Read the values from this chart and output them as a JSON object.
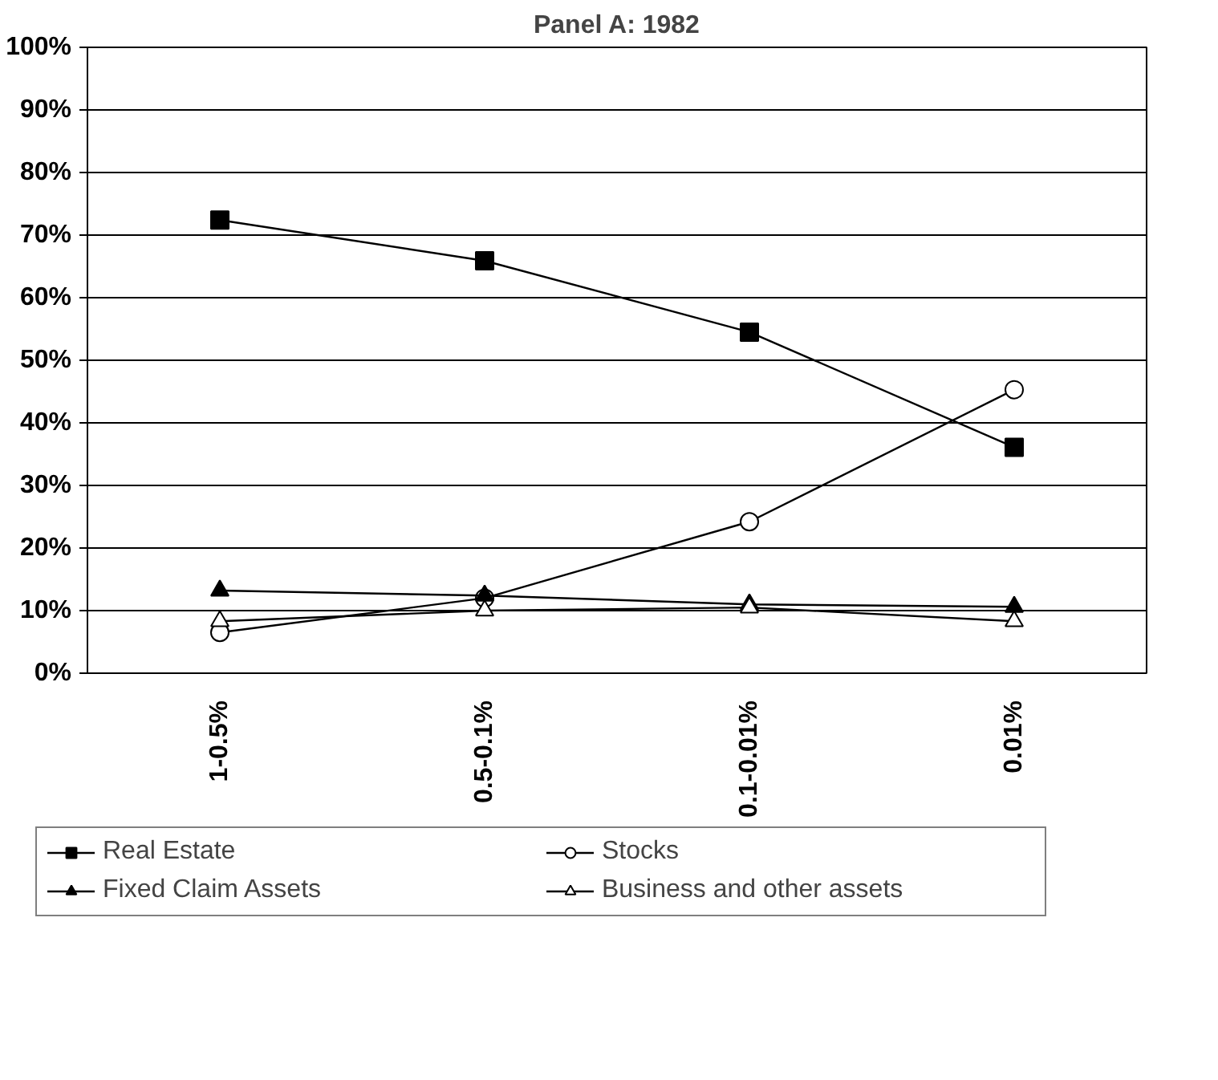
{
  "chart_data": {
    "type": "line",
    "title": "Panel A: 1982",
    "categories": [
      "1-0.5%",
      "0.5-0.1%",
      "0.1-0.01%",
      "0.01%"
    ],
    "series": [
      {
        "name": "Real Estate",
        "color": "#000000",
        "marker": "square",
        "values": [
          72.4,
          65.9,
          54.5,
          36.1
        ]
      },
      {
        "name": "Stocks",
        "color": "#000000",
        "marker": "circle_open",
        "values": [
          6.5,
          12,
          24.2,
          45.3
        ]
      },
      {
        "name": "Fixed Claim Assets",
        "color": "#000000",
        "marker": "triangle",
        "values": [
          13.2,
          12.4,
          11,
          10.6
        ]
      },
      {
        "name": "Business and other assets",
        "color": "#000000",
        "marker": "triangle_open",
        "values": [
          8.3,
          10,
          10.5,
          8.3
        ]
      }
    ],
    "ylim": [
      0,
      100
    ],
    "yticks": [
      {
        "value": 0,
        "label": "0%"
      },
      {
        "value": 10,
        "label": "10%"
      },
      {
        "value": 20,
        "label": "20%"
      },
      {
        "value": 30,
        "label": "30%"
      },
      {
        "value": 40,
        "label": "40%"
      },
      {
        "value": 50,
        "label": "50%"
      },
      {
        "value": 60,
        "label": "60%"
      },
      {
        "value": 70,
        "label": "70%"
      },
      {
        "value": 80,
        "label": "80%"
      },
      {
        "value": 90,
        "label": "90%"
      },
      {
        "value": 100,
        "label": "100%"
      }
    ],
    "grid": "y",
    "legend": "bottom",
    "line_style": "solid"
  }
}
